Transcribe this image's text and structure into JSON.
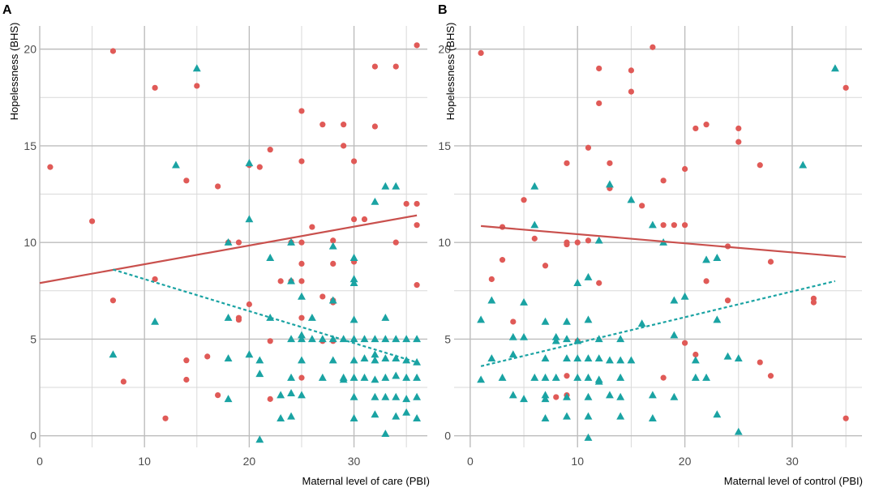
{
  "chart_data": [
    {
      "type": "scatter",
      "panel_label": "A",
      "title": "",
      "xlabel": "Maternal level of care (PBI)",
      "ylabel": "Hopelessness (BHS)",
      "xlim": [
        0,
        37
      ],
      "ylim": [
        -0.6,
        21.2
      ],
      "x_ticks": [
        0,
        10,
        20,
        30
      ],
      "y_ticks": [
        0,
        5,
        10,
        15,
        20
      ],
      "x_minor": [
        5,
        15,
        25,
        35
      ],
      "y_minor": [
        2.5,
        7.5,
        12.5,
        17.5
      ],
      "grid": true,
      "series": [
        {
          "name": "group-red",
          "marker": "circle",
          "color": "#e05a57",
          "points": [
            [
              1,
              13.9
            ],
            [
              5,
              11.1
            ],
            [
              7,
              19.9
            ],
            [
              7,
              7
            ],
            [
              8,
              2.8
            ],
            [
              11,
              18
            ],
            [
              11,
              8.1
            ],
            [
              12,
              0.9
            ],
            [
              14,
              13.2
            ],
            [
              14,
              3.9
            ],
            [
              14,
              2.9
            ],
            [
              15,
              18.1
            ],
            [
              16,
              4.1
            ],
            [
              17,
              12.9
            ],
            [
              17,
              2.1
            ],
            [
              18,
              10
            ],
            [
              19,
              10
            ],
            [
              19,
              6.1
            ],
            [
              19,
              6
            ],
            [
              20,
              14
            ],
            [
              20,
              6.8
            ],
            [
              21,
              13.9
            ],
            [
              22,
              14.8
            ],
            [
              22,
              4.9
            ],
            [
              22,
              1.9
            ],
            [
              23,
              8
            ],
            [
              24,
              10
            ],
            [
              24,
              8
            ],
            [
              25,
              16.8
            ],
            [
              25,
              14.2
            ],
            [
              25,
              10
            ],
            [
              25,
              8.9
            ],
            [
              25,
              8
            ],
            [
              25,
              6.1
            ],
            [
              25,
              3
            ],
            [
              26,
              10.8
            ],
            [
              27,
              16.1
            ],
            [
              27,
              7.2
            ],
            [
              27,
              4.9
            ],
            [
              28,
              10.1
            ],
            [
              28,
              8.9
            ],
            [
              28,
              7
            ],
            [
              28,
              6.9
            ],
            [
              28,
              4.9
            ],
            [
              29,
              16.1
            ],
            [
              29,
              15
            ],
            [
              30,
              14.2
            ],
            [
              30,
              11.2
            ],
            [
              30,
              9
            ],
            [
              31,
              11.2
            ],
            [
              32,
              19.1
            ],
            [
              32,
              16
            ],
            [
              34,
              19.1
            ],
            [
              34,
              10
            ],
            [
              35,
              12
            ],
            [
              36,
              20.2
            ],
            [
              36,
              12
            ],
            [
              36,
              10.9
            ],
            [
              36,
              7.8
            ]
          ]
        },
        {
          "name": "group-teal",
          "marker": "triangle",
          "color": "#1aa3a3",
          "points": [
            [
              7,
              4.2
            ],
            [
              11,
              5.9
            ],
            [
              13,
              14
            ],
            [
              15,
              19
            ],
            [
              18,
              10
            ],
            [
              18,
              6.1
            ],
            [
              18,
              4
            ],
            [
              18,
              1.9
            ],
            [
              20,
              14.1
            ],
            [
              20,
              11.2
            ],
            [
              20,
              4.2
            ],
            [
              21,
              3.9
            ],
            [
              21,
              3.2
            ],
            [
              21,
              -0.2
            ],
            [
              22,
              9.2
            ],
            [
              22,
              6.1
            ],
            [
              23,
              2.1
            ],
            [
              23,
              0.9
            ],
            [
              24,
              10
            ],
            [
              24,
              8
            ],
            [
              24,
              5
            ],
            [
              24,
              3
            ],
            [
              24,
              2.2
            ],
            [
              24,
              1
            ],
            [
              25,
              7.2
            ],
            [
              25,
              5.2
            ],
            [
              25,
              5
            ],
            [
              25,
              3.9
            ],
            [
              25,
              2.1
            ],
            [
              26,
              6.1
            ],
            [
              26,
              5
            ],
            [
              27,
              5
            ],
            [
              27,
              3
            ],
            [
              28,
              9.8
            ],
            [
              28,
              7
            ],
            [
              28,
              5
            ],
            [
              28,
              3.9
            ],
            [
              29,
              5
            ],
            [
              29,
              3
            ],
            [
              29,
              2.9
            ],
            [
              30,
              9.2
            ],
            [
              30,
              8.1
            ],
            [
              30,
              7.9
            ],
            [
              30,
              6
            ],
            [
              30,
              5
            ],
            [
              30,
              3.9
            ],
            [
              30,
              3
            ],
            [
              30,
              2
            ],
            [
              30,
              0.9
            ],
            [
              31,
              5
            ],
            [
              31,
              4
            ],
            [
              31,
              3
            ],
            [
              32,
              12.1
            ],
            [
              32,
              5
            ],
            [
              32,
              4.2
            ],
            [
              32,
              3.9
            ],
            [
              32,
              2.9
            ],
            [
              32,
              2
            ],
            [
              32,
              1.1
            ],
            [
              33,
              12.9
            ],
            [
              33,
              6.1
            ],
            [
              33,
              5
            ],
            [
              33,
              4
            ],
            [
              33,
              3
            ],
            [
              33,
              2
            ],
            [
              33,
              0.1
            ],
            [
              34,
              12.9
            ],
            [
              34,
              5
            ],
            [
              34,
              4
            ],
            [
              34,
              3.1
            ],
            [
              34,
              2
            ],
            [
              34,
              1
            ],
            [
              35,
              5
            ],
            [
              35,
              3.9
            ],
            [
              35,
              3
            ],
            [
              35,
              1.9
            ],
            [
              35,
              1.2
            ],
            [
              36,
              5
            ],
            [
              36,
              3.8
            ],
            [
              36,
              3
            ],
            [
              36,
              2
            ],
            [
              36,
              0.9
            ]
          ]
        }
      ],
      "fit_lines": [
        {
          "name": "red-fit",
          "style": "solid",
          "color": "#c9504d",
          "from": [
            0,
            7.9
          ],
          "to": [
            36,
            11.4
          ]
        },
        {
          "name": "teal-fit",
          "style": "dashed",
          "color": "#1aa3a3",
          "from": [
            7,
            8.6
          ],
          "to": [
            36,
            3.8
          ]
        }
      ]
    },
    {
      "type": "scatter",
      "panel_label": "B",
      "title": "",
      "xlabel": "Maternal level of control (PBI)",
      "ylabel": "Hopelessness (BHS)",
      "xlim": [
        -1.5,
        36.5
      ],
      "ylim": [
        -0.6,
        21.2
      ],
      "x_ticks": [
        0,
        10,
        20,
        30
      ],
      "y_ticks": [
        0,
        5,
        10,
        15,
        20
      ],
      "x_minor": [
        5,
        15,
        25,
        35
      ],
      "y_minor": [
        2.5,
        7.5,
        12.5,
        17.5
      ],
      "grid": true,
      "series": [
        {
          "name": "group-red",
          "marker": "circle",
          "color": "#e05a57",
          "points": [
            [
              1,
              19.8
            ],
            [
              2,
              8.1
            ],
            [
              3,
              10.8
            ],
            [
              3,
              9.1
            ],
            [
              4,
              5.9
            ],
            [
              5,
              12.2
            ],
            [
              6,
              10.2
            ],
            [
              7,
              8.8
            ],
            [
              8,
              2
            ],
            [
              9,
              14.1
            ],
            [
              9,
              10
            ],
            [
              9,
              9.9
            ],
            [
              9,
              3.1
            ],
            [
              9,
              2.1
            ],
            [
              10,
              10
            ],
            [
              10,
              4.9
            ],
            [
              11,
              14.9
            ],
            [
              11,
              10.1
            ],
            [
              12,
              19
            ],
            [
              12,
              17.2
            ],
            [
              12,
              7.9
            ],
            [
              13,
              14.1
            ],
            [
              13,
              12.8
            ],
            [
              15,
              17.8
            ],
            [
              15,
              18.9
            ],
            [
              16,
              11.9
            ],
            [
              17,
              20.1
            ],
            [
              18,
              13.2
            ],
            [
              18,
              10.9
            ],
            [
              18,
              3
            ],
            [
              19,
              10.9
            ],
            [
              20,
              13.8
            ],
            [
              20,
              10.9
            ],
            [
              20,
              4.8
            ],
            [
              21,
              15.9
            ],
            [
              21,
              4.2
            ],
            [
              22,
              16.1
            ],
            [
              22,
              8
            ],
            [
              24,
              9.8
            ],
            [
              24,
              7
            ],
            [
              25,
              15.9
            ],
            [
              25,
              15.2
            ],
            [
              27,
              14
            ],
            [
              27,
              3.8
            ],
            [
              28,
              9
            ],
            [
              28,
              3.1
            ],
            [
              32,
              6.9
            ],
            [
              32,
              7.1
            ],
            [
              35,
              18
            ],
            [
              35,
              0.9
            ]
          ]
        },
        {
          "name": "group-teal",
          "marker": "triangle",
          "color": "#1aa3a3",
          "points": [
            [
              1,
              6
            ],
            [
              1,
              2.9
            ],
            [
              2,
              7
            ],
            [
              2,
              4
            ],
            [
              3,
              3
            ],
            [
              4,
              5.1
            ],
            [
              4,
              4.2
            ],
            [
              4,
              2.1
            ],
            [
              5,
              6.9
            ],
            [
              5,
              5.1
            ],
            [
              5,
              1.9
            ],
            [
              6,
              12.9
            ],
            [
              6,
              10.9
            ],
            [
              6,
              3
            ],
            [
              7,
              5.9
            ],
            [
              7,
              4
            ],
            [
              7,
              3
            ],
            [
              7,
              2.1
            ],
            [
              7,
              1.9
            ],
            [
              7,
              0.9
            ],
            [
              8,
              5.1
            ],
            [
              8,
              4.9
            ],
            [
              8,
              3
            ],
            [
              9,
              5.9
            ],
            [
              9,
              5
            ],
            [
              9,
              4
            ],
            [
              9,
              2
            ],
            [
              9,
              1
            ],
            [
              10,
              7.9
            ],
            [
              10,
              4.9
            ],
            [
              10,
              4
            ],
            [
              10,
              3
            ],
            [
              11,
              8.2
            ],
            [
              11,
              6
            ],
            [
              11,
              4
            ],
            [
              11,
              3
            ],
            [
              11,
              2
            ],
            [
              11,
              1
            ],
            [
              11,
              -0.1
            ],
            [
              12,
              10.1
            ],
            [
              12,
              5
            ],
            [
              12,
              4
            ],
            [
              12,
              2.9
            ],
            [
              12,
              2.8
            ],
            [
              13,
              13
            ],
            [
              13,
              3.9
            ],
            [
              13,
              2.1
            ],
            [
              14,
              5
            ],
            [
              14,
              3.9
            ],
            [
              14,
              3
            ],
            [
              14,
              2
            ],
            [
              14,
              1
            ],
            [
              15,
              12.2
            ],
            [
              15,
              3.9
            ],
            [
              16,
              5.8
            ],
            [
              17,
              10.9
            ],
            [
              17,
              2.1
            ],
            [
              17,
              0.9
            ],
            [
              18,
              10
            ],
            [
              19,
              7
            ],
            [
              19,
              5.2
            ],
            [
              19,
              2
            ],
            [
              20,
              7.2
            ],
            [
              21,
              3.9
            ],
            [
              21,
              3
            ],
            [
              22,
              9.1
            ],
            [
              22,
              3
            ],
            [
              23,
              6
            ],
            [
              23,
              9.2
            ],
            [
              23,
              1.1
            ],
            [
              24,
              4.1
            ],
            [
              25,
              4
            ],
            [
              25,
              0.2
            ],
            [
              31,
              14
            ],
            [
              34,
              19
            ]
          ]
        }
      ],
      "fit_lines": [
        {
          "name": "red-fit",
          "style": "solid",
          "color": "#c9504d",
          "from": [
            1,
            10.85
          ],
          "to": [
            35,
            9.25
          ]
        },
        {
          "name": "teal-fit",
          "style": "dashed",
          "color": "#1aa3a3",
          "from": [
            1,
            3.6
          ],
          "to": [
            34,
            8.0
          ]
        }
      ]
    }
  ]
}
